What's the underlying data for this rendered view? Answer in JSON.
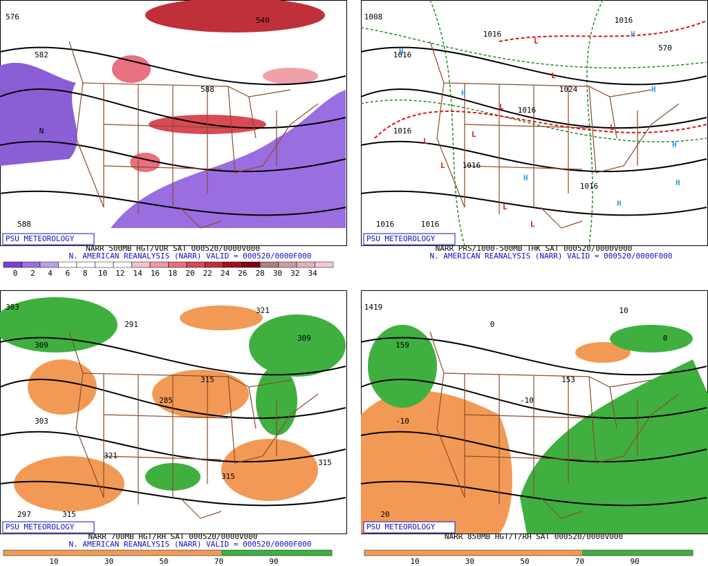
{
  "panels": [
    {
      "credit": "PSU METEOROLOGY",
      "caption": "NARR 500MB HGT/VOR SAT 000520/0000V000",
      "subcaption": "N. AMERICAN REANALYSIS (NARR) VALID = 000520/0000F000",
      "colorbar": [
        "0",
        "2",
        "4",
        "6",
        "8",
        "10",
        "12",
        "14",
        "16",
        "18",
        "20",
        "22",
        "24",
        "26",
        "28",
        "30",
        "32",
        "34"
      ],
      "contour_labels": [
        "576",
        "582",
        "588",
        "540",
        "588",
        "N"
      ]
    },
    {
      "credit": "PSU METEOROLOGY",
      "caption": "NARR PRS/1000-500MB THK SAT 000520/0000V000",
      "subcaption": "N. AMERICAN REANALYSIS (NARR) VALID = 000520/0000F000",
      "contour_labels": [
        "1008",
        "1016",
        "1024",
        "1016",
        "1016",
        "1016",
        "1016",
        "1016",
        "570",
        "1016",
        "1016",
        "1016"
      ],
      "high_symbol": "H",
      "low_symbol": "L"
    },
    {
      "credit": "PSU METEOROLOGY",
      "caption": "NARR 700MB HGT/RH SAT 000520/0000V000",
      "subcaption": "N. AMERICAN REANALYSIS (NARR) VALID = 000520/0000F000",
      "colorbar": [
        "10",
        "30",
        "50",
        "70",
        "90"
      ],
      "contour_labels": [
        "303",
        "309",
        "315",
        "321",
        "297",
        "303",
        "291",
        "285",
        "309",
        "315",
        "315",
        "321",
        "315"
      ]
    },
    {
      "credit": "PSU METEOROLOGY",
      "caption": "NARR 850MB HGT/T/RH SAT 000520/0000V000",
      "colorbar": [
        "10",
        "30",
        "50",
        "70",
        "90"
      ],
      "contour_labels": [
        "1419",
        "159",
        "153",
        "10",
        "20",
        "-10",
        "0",
        "-10",
        "0"
      ]
    }
  ]
}
